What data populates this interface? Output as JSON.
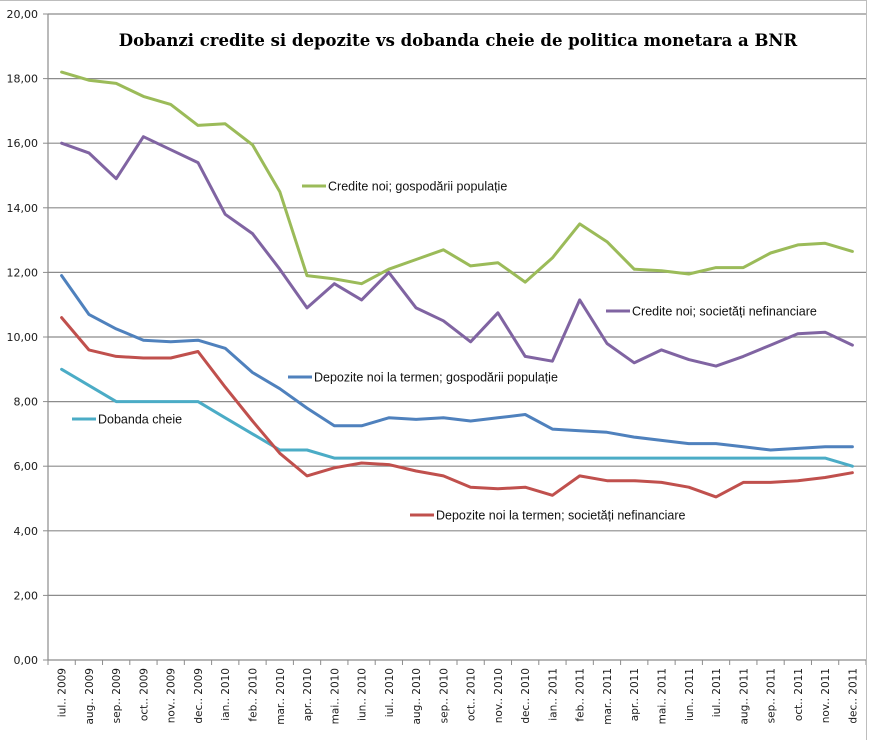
{
  "chart_data": {
    "type": "line",
    "title": "Dobanzi credite si depozite vs dobanda cheie de politica monetara a BNR",
    "xlabel": "",
    "ylabel": "",
    "ylim": [
      0,
      20
    ],
    "yticks": [
      "0,00",
      "2,00",
      "4,00",
      "6,00",
      "8,00",
      "10,00",
      "12,00",
      "14,00",
      "16,00",
      "18,00",
      "20,00"
    ],
    "ytick_values": [
      0,
      2,
      4,
      6,
      8,
      10,
      12,
      14,
      16,
      18,
      20
    ],
    "grid": true,
    "legend": "inline-labels",
    "categories": [
      "iul.. 2009",
      "aug.. 2009",
      "sep.. 2009",
      "oct.. 2009",
      "nov.. 2009",
      "dec.. 2009",
      "ian.. 2010",
      "feb.. 2010",
      "mar.. 2010",
      "apr.. 2010",
      "mai.. 2010",
      "iun.. 2010",
      "iul.. 2010",
      "aug.. 2010",
      "sep.. 2010",
      "oct.. 2010",
      "nov.. 2010",
      "dec.. 2010",
      "ian.. 2011",
      "feb.. 2011",
      "mar.. 2011",
      "apr.. 2011",
      "mai.. 2011",
      "iun.. 2011",
      "iul.. 2011",
      "aug.. 2011",
      "sep.. 2011",
      "oct.. 2011",
      "nov.. 2011",
      "dec.. 2011"
    ],
    "series": [
      {
        "name": "Credite noi; gospodării populație",
        "color": "#9bbb59",
        "values": [
          18.2,
          17.95,
          17.85,
          17.45,
          17.2,
          16.55,
          16.6,
          15.95,
          14.5,
          11.9,
          11.8,
          11.65,
          12.1,
          12.4,
          12.7,
          12.2,
          12.3,
          11.7,
          12.45,
          13.5,
          12.95,
          12.1,
          12.05,
          11.95,
          12.15,
          12.15,
          12.6,
          12.85,
          12.9,
          12.65
        ]
      },
      {
        "name": "Credite noi; societăți nefinanciare",
        "color": "#8064a2",
        "values": [
          16.0,
          15.7,
          14.9,
          16.2,
          15.8,
          15.4,
          13.8,
          13.2,
          12.1,
          10.9,
          11.65,
          11.15,
          12.0,
          10.9,
          10.5,
          9.85,
          10.75,
          9.4,
          9.25,
          11.15,
          9.8,
          9.2,
          9.6,
          9.3,
          9.1,
          9.4,
          9.75,
          10.1,
          10.15,
          9.75
        ]
      },
      {
        "name": "Depozite noi la termen; gospodării populație",
        "color": "#4f81bd",
        "values": [
          11.9,
          10.7,
          10.25,
          9.9,
          9.85,
          9.9,
          9.65,
          8.9,
          8.4,
          7.8,
          7.25,
          7.25,
          7.5,
          7.45,
          7.5,
          7.4,
          7.5,
          7.6,
          7.15,
          7.1,
          7.05,
          6.9,
          6.8,
          6.7,
          6.7,
          6.6,
          6.5,
          6.55,
          6.6,
          6.6
        ]
      },
      {
        "name": "Dobanda cheie",
        "color": "#4bacc6",
        "values": [
          9.0,
          8.5,
          8.0,
          8.0,
          8.0,
          8.0,
          7.5,
          7.0,
          6.5,
          6.5,
          6.25,
          6.25,
          6.25,
          6.25,
          6.25,
          6.25,
          6.25,
          6.25,
          6.25,
          6.25,
          6.25,
          6.25,
          6.25,
          6.25,
          6.25,
          6.25,
          6.25,
          6.25,
          6.25,
          6.0
        ]
      },
      {
        "name": "Depozite noi la termen; societăți nefinanciare",
        "color": "#c0504d",
        "values": [
          10.6,
          9.6,
          9.4,
          9.35,
          9.35,
          9.55,
          8.45,
          7.4,
          6.4,
          5.7,
          5.95,
          6.1,
          6.05,
          5.85,
          5.7,
          5.35,
          5.3,
          5.35,
          5.1,
          5.7,
          5.55,
          5.55,
          5.5,
          5.35,
          5.05,
          5.5,
          5.5,
          5.55,
          5.65,
          5.8
        ]
      }
    ]
  }
}
